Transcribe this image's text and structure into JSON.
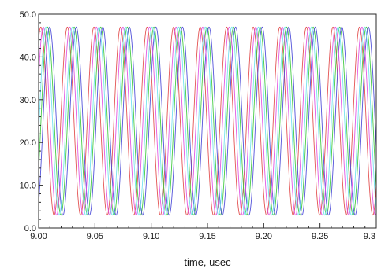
{
  "chart_data": {
    "type": "line",
    "title": "",
    "xlabel": "time, usec",
    "ylabel": "",
    "xlim": [
      9.0,
      9.3
    ],
    "ylim": [
      0.0,
      50.0
    ],
    "x_ticks": [
      9.0,
      9.05,
      9.1,
      9.15,
      9.2,
      9.25,
      9.3
    ],
    "x_tick_labels": [
      "9.00",
      "9.05",
      "9.10",
      "9.15",
      "9.20",
      "9.25",
      "9.3"
    ],
    "y_ticks": [
      0,
      10,
      20,
      30,
      40,
      50
    ],
    "y_tick_labels": [
      "0.0",
      "10.0",
      "20.0",
      "30.0",
      "40.0",
      "50.0"
    ],
    "grid": false,
    "legend": "none",
    "waveform": {
      "shape": "sine",
      "min": 3.0,
      "max": 47.0,
      "period_usec": 0.0236
    },
    "series": [
      {
        "color": "#e24a4a",
        "value_at_9_00": 44.2
      },
      {
        "color": "#3cc83c",
        "value_at_9_00": 13.5
      },
      {
        "color": "#4a4ad8",
        "value_at_9_00": 6.0
      },
      {
        "color": "#e050e0",
        "value_at_9_00": 35.0
      },
      {
        "color": "#6fe0f0",
        "value_at_9_00": 22.0
      }
    ]
  }
}
